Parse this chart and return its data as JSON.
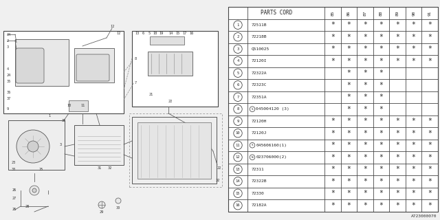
{
  "bg_color": "#f0f0f0",
  "table_bg": "#ffffff",
  "col_headers": [
    "85",
    "86",
    "87",
    "88",
    "89",
    "90",
    "91"
  ],
  "parts": [
    {
      "num": "1",
      "code": "72511B",
      "prefix": "",
      "marks": [
        1,
        1,
        1,
        1,
        1,
        1,
        1
      ]
    },
    {
      "num": "2",
      "code": "72218B",
      "prefix": "",
      "marks": [
        1,
        1,
        1,
        1,
        1,
        1,
        1
      ]
    },
    {
      "num": "3",
      "code": "Q510025",
      "prefix": "",
      "marks": [
        1,
        1,
        1,
        1,
        1,
        1,
        1
      ]
    },
    {
      "num": "4",
      "code": "72120I",
      "prefix": "",
      "marks": [
        1,
        1,
        1,
        1,
        1,
        1,
        1
      ]
    },
    {
      "num": "5",
      "code": "72322A",
      "prefix": "",
      "marks": [
        0,
        1,
        1,
        1,
        0,
        0,
        0
      ]
    },
    {
      "num": "6",
      "code": "72323C",
      "prefix": "",
      "marks": [
        0,
        1,
        1,
        1,
        0,
        0,
        0
      ]
    },
    {
      "num": "7",
      "code": "72351A",
      "prefix": "",
      "marks": [
        0,
        1,
        1,
        1,
        0,
        0,
        0
      ]
    },
    {
      "num": "8",
      "code": "045004120 (3)",
      "prefix": "S",
      "marks": [
        0,
        1,
        1,
        1,
        0,
        0,
        0
      ]
    },
    {
      "num": "9",
      "code": "72120H",
      "prefix": "",
      "marks": [
        1,
        1,
        1,
        1,
        1,
        1,
        1
      ]
    },
    {
      "num": "10",
      "code": "72120J",
      "prefix": "",
      "marks": [
        1,
        1,
        1,
        1,
        1,
        1,
        1
      ]
    },
    {
      "num": "11",
      "code": "045606160(1)",
      "prefix": "S",
      "marks": [
        1,
        1,
        1,
        1,
        1,
        1,
        1
      ]
    },
    {
      "num": "12",
      "code": "023706000(2)",
      "prefix": "N",
      "marks": [
        1,
        1,
        1,
        1,
        1,
        1,
        1
      ]
    },
    {
      "num": "13",
      "code": "72311",
      "prefix": "",
      "marks": [
        1,
        1,
        1,
        1,
        1,
        1,
        1
      ]
    },
    {
      "num": "14",
      "code": "72322B",
      "prefix": "",
      "marks": [
        1,
        1,
        1,
        1,
        1,
        1,
        1
      ]
    },
    {
      "num": "15",
      "code": "72330",
      "prefix": "",
      "marks": [
        1,
        1,
        1,
        1,
        1,
        1,
        1
      ]
    },
    {
      "num": "16",
      "code": "72182A",
      "prefix": "",
      "marks": [
        1,
        1,
        1,
        1,
        1,
        1,
        1
      ]
    }
  ],
  "footer": "A723000070",
  "lc": "#555555",
  "lc2": "#777777"
}
